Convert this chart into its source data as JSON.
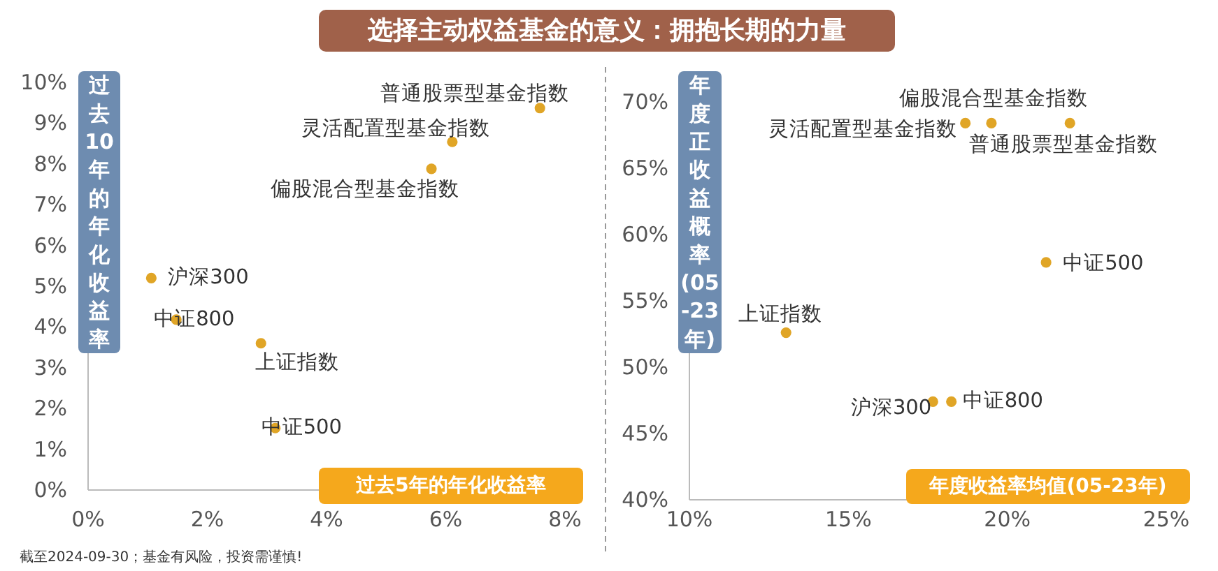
{
  "chart_data": [
    {
      "type": "scatter",
      "title": "选择主动权益基金的意义：拥抱长期的力量",
      "xlabel": "过去5年的年化收益率",
      "ylabel": "过去10年的年化收益率",
      "annotations": [
        "截至2024-09-30；基金有风险，投资需谨慎!"
      ],
      "xlim": [
        0,
        8
      ],
      "xticks": [
        {
          "value": 0,
          "label": "0%"
        },
        {
          "value": 2,
          "label": "2%"
        },
        {
          "value": 4,
          "label": "4%"
        },
        {
          "value": 6,
          "label": "6%"
        },
        {
          "value": 8,
          "label": "8%"
        }
      ],
      "ylim": [
        0,
        10
      ],
      "yticks": [
        {
          "value": 0,
          "label": "0%"
        },
        {
          "value": 1,
          "label": "1%"
        },
        {
          "value": 2,
          "label": "2%"
        },
        {
          "value": 3,
          "label": "3%"
        },
        {
          "value": 4,
          "label": "4%"
        },
        {
          "value": 5,
          "label": "5%"
        },
        {
          "value": 6,
          "label": "6%"
        },
        {
          "value": 7,
          "label": "7%"
        },
        {
          "value": 8,
          "label": "8%"
        },
        {
          "value": 9,
          "label": "9%"
        },
        {
          "value": 10,
          "label": "10%"
        }
      ],
      "grid": false,
      "marker": "circle",
      "series": [
        {
          "name": "普通股票型基金指数",
          "color": "#e0a526",
          "x": [
            7.58
          ],
          "values": [
            9.37
          ]
        },
        {
          "name": "灵活配置型基金指数",
          "color": "#e0a526",
          "x": [
            6.11
          ],
          "values": [
            8.54
          ]
        },
        {
          "name": "偏股混合型基金指数",
          "color": "#e0a526",
          "x": [
            5.76
          ],
          "values": [
            7.88
          ]
        },
        {
          "name": "沪深300",
          "color": "#e0a526",
          "x": [
            1.06
          ],
          "values": [
            5.2
          ]
        },
        {
          "name": "中证800",
          "color": "#e0a526",
          "x": [
            1.48
          ],
          "values": [
            4.18
          ]
        },
        {
          "name": "上证指数",
          "color": "#e0a526",
          "x": [
            2.9
          ],
          "values": [
            3.6
          ]
        },
        {
          "name": "中证500",
          "color": "#e0a526",
          "x": [
            3.14
          ],
          "values": [
            1.52
          ]
        }
      ]
    },
    {
      "type": "scatter",
      "xlabel": "年度收益率均值(05-23年)",
      "ylabel": "年度正收益概率(05-23年)",
      "xlim": [
        10,
        25
      ],
      "xticks": [
        {
          "value": 10,
          "label": "10%"
        },
        {
          "value": 15,
          "label": "15%"
        },
        {
          "value": 20,
          "label": "20%"
        },
        {
          "value": 25,
          "label": "25%"
        }
      ],
      "ylim": [
        40,
        70
      ],
      "yticks": [
        {
          "value": 40,
          "label": "40%"
        },
        {
          "value": 45,
          "label": "45%"
        },
        {
          "value": 50,
          "label": "50%"
        },
        {
          "value": 55,
          "label": "55%"
        },
        {
          "value": 60,
          "label": "60%"
        },
        {
          "value": 65,
          "label": "65%"
        },
        {
          "value": 70,
          "label": "70%"
        }
      ],
      "grid": false,
      "marker": "circle",
      "series": [
        {
          "name": "灵活配置型基金指数",
          "color": "#e0a526",
          "x": [
            18.68
          ],
          "values": [
            68.4
          ]
        },
        {
          "name": "偏股混合型基金指数",
          "color": "#e0a526",
          "x": [
            19.5
          ],
          "values": [
            68.4
          ]
        },
        {
          "name": "普通股票型基金指数",
          "color": "#e0a526",
          "x": [
            21.97
          ],
          "values": [
            68.4
          ]
        },
        {
          "name": "中证500",
          "color": "#e0a526",
          "x": [
            21.22
          ],
          "values": [
            57.9
          ]
        },
        {
          "name": "上证指数",
          "color": "#e0a526",
          "x": [
            13.04
          ],
          "values": [
            52.6
          ]
        },
        {
          "name": "沪深300",
          "color": "#e0a526",
          "x": [
            17.66
          ],
          "values": [
            47.4
          ]
        },
        {
          "name": "中证800",
          "color": "#e0a526",
          "x": [
            18.24
          ],
          "values": [
            47.4
          ]
        }
      ]
    }
  ]
}
